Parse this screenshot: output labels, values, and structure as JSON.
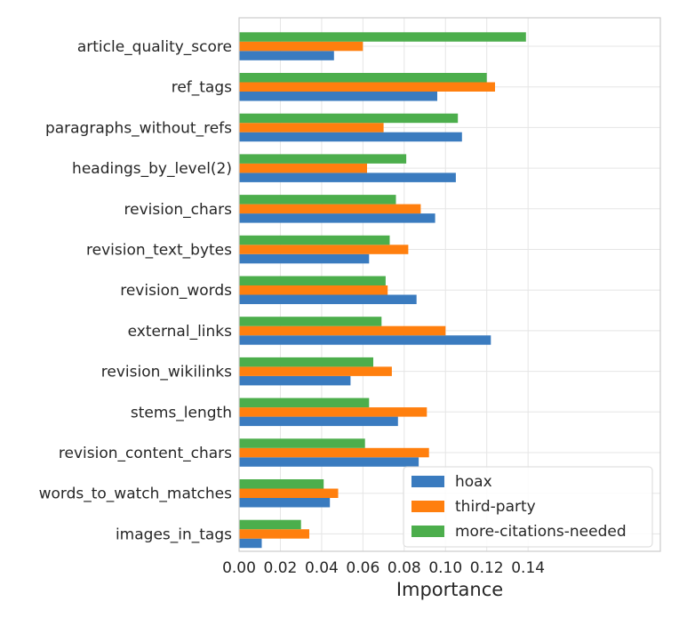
{
  "chart_data": {
    "type": "bar",
    "orientation": "horizontal",
    "title": "",
    "xlabel": "Importance",
    "ylabel": "",
    "xlim": [
      0.0,
      0.145
    ],
    "xticks": [
      0.0,
      0.02,
      0.04,
      0.06,
      0.08,
      0.1,
      0.12,
      0.14
    ],
    "xtick_labels": [
      "0.00",
      "0.02",
      "0.04",
      "0.06",
      "0.08",
      "0.10",
      "0.12",
      "0.14"
    ],
    "grid": true,
    "legend_position": "bottom-right",
    "categories": [
      "article_quality_score",
      "ref_tags",
      "paragraphs_without_refs",
      "headings_by_level(2)",
      "revision_chars",
      "revision_text_bytes",
      "revision_words",
      "external_links",
      "revision_wikilinks",
      "stems_length",
      "revision_content_chars",
      "words_to_watch_matches",
      "images_in_tags"
    ],
    "series": [
      {
        "name": "hoax",
        "color": "#3a7bbf",
        "values": [
          0.046,
          0.096,
          0.108,
          0.105,
          0.095,
          0.063,
          0.086,
          0.122,
          0.054,
          0.077,
          0.087,
          0.044,
          0.011
        ]
      },
      {
        "name": "third-party",
        "color": "#ff7f0e",
        "values": [
          0.06,
          0.124,
          0.07,
          0.062,
          0.088,
          0.082,
          0.072,
          0.1,
          0.074,
          0.091,
          0.092,
          0.048,
          0.034
        ]
      },
      {
        "name": "more-citations-needed",
        "color": "#4cae4c",
        "values": [
          0.139,
          0.12,
          0.106,
          0.081,
          0.076,
          0.073,
          0.071,
          0.069,
          0.065,
          0.063,
          0.061,
          0.041,
          0.03
        ]
      }
    ]
  }
}
